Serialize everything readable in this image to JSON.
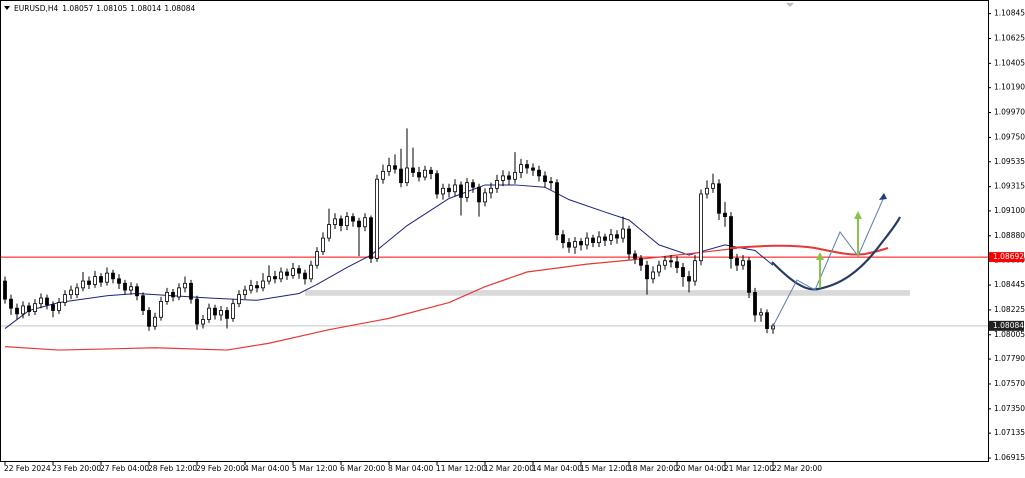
{
  "chart_data": {
    "type": "candlestick",
    "title": "EURUSD,H4",
    "categories": [
      "22 Feb 2024",
      null,
      null,
      null,
      null,
      null,
      null,
      null,
      "23 Feb 20:00",
      null,
      null,
      null,
      null,
      null,
      null,
      null,
      "27 Feb 04:00",
      null,
      null,
      null,
      null,
      null,
      null,
      null,
      "28 Feb 12:00",
      null,
      null,
      null,
      null,
      null,
      null,
      null,
      "29 Feb 20:00",
      null,
      null,
      null,
      null,
      null,
      null,
      null,
      "4 Mar 04:00",
      null,
      null,
      null,
      null,
      null,
      null,
      null,
      "5 Mar 12:00",
      null,
      null,
      null,
      null,
      null,
      null,
      null,
      "6 Mar 20:00",
      null,
      null,
      null,
      null,
      null,
      null,
      null,
      "8 Mar 04:00",
      null,
      null,
      null,
      null,
      null,
      null,
      null,
      "11 Mar 12:00",
      null,
      null,
      null,
      null,
      null,
      null,
      null,
      "12 Mar 20:00",
      null,
      null,
      null,
      null,
      null,
      null,
      null,
      "14 Mar 04:00",
      null,
      null,
      null,
      null,
      null,
      null,
      null,
      "15 Mar 12:00",
      null,
      null,
      null,
      null,
      null,
      null,
      null,
      "18 Mar 20:00",
      null,
      null,
      null,
      null,
      null,
      null,
      null,
      "20 Mar 04:00",
      null,
      null,
      null,
      null,
      null,
      null,
      null,
      "21 Mar 12:00",
      null,
      null,
      null,
      null,
      null,
      null,
      null,
      "22 Mar 20:00"
    ],
    "open": [
      1.0848,
      1.0832,
      1.0824,
      1.0819,
      1.0826,
      1.0821,
      1.0828,
      1.0833,
      1.0827,
      1.0822,
      1.0829,
      1.0836,
      1.0836,
      1.0842,
      1.0848,
      1.0845,
      1.0852,
      1.0847,
      1.0855,
      1.085,
      1.0846,
      1.084,
      1.0843,
      1.0835,
      1.0822,
      1.0808,
      1.0816,
      1.083,
      1.0838,
      1.0834,
      1.0842,
      1.0846,
      1.0832,
      1.081,
      1.0814,
      1.0824,
      1.0818,
      1.0822,
      1.0815,
      1.0828,
      1.0836,
      1.084,
      1.0844,
      1.0842,
      1.0848,
      1.0852,
      1.085,
      1.0856,
      1.0853,
      1.0859,
      1.0855,
      1.085,
      1.0862,
      1.0874,
      1.0886,
      1.0898,
      1.0903,
      1.0897,
      1.0905,
      1.0901,
      1.0896,
      1.0904,
      1.0868,
      1.0938,
      1.0945,
      1.095,
      1.0947,
      1.0935,
      1.0948,
      1.0944,
      1.094,
      1.0946,
      1.0943,
      1.0925,
      1.093,
      1.0927,
      1.0933,
      1.0922,
      1.0935,
      1.0931,
      1.0918,
      1.0926,
      1.093,
      1.0937,
      1.0941,
      1.0938,
      1.0944,
      1.0951,
      1.0948,
      1.0946,
      1.0941,
      1.0936,
      1.0935,
      1.0889,
      1.0882,
      1.0878,
      1.0883,
      1.088,
      1.0886,
      1.0882,
      1.0887,
      1.0884,
      1.0889,
      1.0886,
      1.0894,
      1.0872,
      1.0868,
      1.0862,
      1.085,
      1.0856,
      1.0862,
      1.0866,
      1.0865,
      1.086,
      1.0852,
      1.0848,
      1.0866,
      1.0925,
      1.093,
      1.0934,
      1.0908,
      1.0905,
      1.0868,
      1.0862,
      1.0866,
      1.0838,
      1.0818,
      1.082,
      1.08057
    ],
    "high": [
      1.0852,
      1.0836,
      1.0828,
      1.083,
      1.0829,
      1.0832,
      1.0837,
      1.0836,
      1.083,
      1.0833,
      1.084,
      1.0844,
      1.0846,
      1.0856,
      1.0852,
      1.0857,
      1.0855,
      1.086,
      1.0858,
      1.0854,
      1.0849,
      1.0847,
      1.0846,
      1.0838,
      1.0825,
      1.082,
      1.0834,
      1.0842,
      1.0841,
      1.0846,
      1.0852,
      1.0849,
      1.0835,
      1.0818,
      1.0828,
      1.0827,
      1.0826,
      1.0825,
      1.0832,
      1.084,
      1.0844,
      1.0849,
      1.0848,
      1.0855,
      1.0862,
      1.0857,
      1.086,
      1.0859,
      1.0864,
      1.0862,
      1.0858,
      1.0866,
      1.0878,
      1.0891,
      1.0912,
      1.0908,
      1.0906,
      1.0909,
      1.0908,
      1.0904,
      1.0908,
      1.0906,
      1.0942,
      1.0951,
      1.0957,
      1.096,
      1.0965,
      1.0983,
      1.0966,
      1.0949,
      1.095,
      1.0949,
      1.0946,
      1.0934,
      1.0934,
      1.0938,
      1.0936,
      1.0939,
      1.0938,
      1.0934,
      1.093,
      1.0935,
      1.0942,
      1.0946,
      1.0945,
      1.0962,
      1.0956,
      1.0955,
      1.0952,
      1.095,
      1.0945,
      1.094,
      1.0938,
      1.0893,
      1.0886,
      1.0887,
      1.0886,
      1.0891,
      1.0889,
      1.0892,
      1.089,
      1.0894,
      1.0893,
      1.0905,
      1.0897,
      1.0875,
      1.0871,
      1.0866,
      1.0861,
      1.0866,
      1.087,
      1.0871,
      1.087,
      1.0864,
      1.0857,
      1.0871,
      1.0929,
      1.0937,
      1.0943,
      1.0938,
      1.0918,
      1.0909,
      1.0872,
      1.0871,
      1.0869,
      1.0842,
      1.0824,
      1.0823,
      1.08105
    ],
    "low": [
      1.0828,
      1.0818,
      1.0814,
      1.0815,
      1.0817,
      1.0818,
      1.0824,
      1.0823,
      1.0816,
      1.0819,
      1.0826,
      1.0832,
      1.0833,
      1.0839,
      1.0841,
      1.0842,
      1.0843,
      1.0844,
      1.0846,
      1.0841,
      1.0836,
      1.0836,
      1.0831,
      1.0818,
      1.0804,
      1.0805,
      1.0813,
      1.0827,
      1.083,
      1.0831,
      1.0838,
      1.0828,
      1.0805,
      1.0806,
      1.0811,
      1.0814,
      1.0813,
      1.0806,
      1.0812,
      1.0825,
      1.0832,
      1.0837,
      1.0838,
      1.0839,
      1.0845,
      1.0846,
      1.0847,
      1.0849,
      1.085,
      1.085,
      1.0845,
      1.0847,
      1.0859,
      1.0871,
      1.0883,
      1.0894,
      1.0892,
      1.0893,
      1.0896,
      1.087,
      1.0892,
      1.0864,
      1.0865,
      1.0934,
      1.0941,
      1.0943,
      1.0931,
      1.0932,
      1.094,
      1.0936,
      1.0937,
      1.0938,
      1.0921,
      1.092,
      1.0922,
      1.0923,
      1.0906,
      1.0918,
      1.0926,
      1.0905,
      1.0914,
      1.0921,
      1.0926,
      1.0932,
      1.0933,
      1.0934,
      1.0939,
      1.0943,
      1.0941,
      1.0936,
      1.0931,
      1.0929,
      1.0884,
      1.0877,
      1.0873,
      1.0872,
      1.0875,
      1.0876,
      1.0878,
      1.0878,
      1.0879,
      1.088,
      1.0881,
      1.0882,
      1.0867,
      1.0863,
      1.0857,
      1.0836,
      1.0846,
      1.0852,
      1.0858,
      1.086,
      1.0855,
      1.0843,
      1.0838,
      1.0844,
      1.0862,
      1.0921,
      1.0926,
      1.0902,
      1.0896,
      1.0859,
      1.0857,
      1.0858,
      1.0833,
      1.0812,
      1.0812,
      1.0802,
      1.08014
    ],
    "close": [
      1.0832,
      1.0824,
      1.0819,
      1.0826,
      1.0821,
      1.0828,
      1.0833,
      1.0827,
      1.0822,
      1.0829,
      1.0836,
      1.084,
      1.0842,
      1.0848,
      1.0845,
      1.0852,
      1.0847,
      1.0855,
      1.085,
      1.0846,
      1.084,
      1.0843,
      1.0835,
      1.0822,
      1.0808,
      1.0816,
      1.083,
      1.0838,
      1.0834,
      1.0842,
      1.0846,
      1.0832,
      1.081,
      1.0814,
      1.0824,
      1.0818,
      1.0822,
      1.0815,
      1.0828,
      1.0836,
      1.084,
      1.0844,
      1.0842,
      1.0848,
      1.0852,
      1.085,
      1.0856,
      1.0853,
      1.0859,
      1.0855,
      1.085,
      1.0862,
      1.0874,
      1.0886,
      1.0898,
      1.0903,
      1.0897,
      1.0905,
      1.0901,
      1.0896,
      1.0904,
      1.0868,
      1.0938,
      1.0945,
      1.095,
      1.0947,
      1.0935,
      1.0948,
      1.0944,
      1.094,
      1.0946,
      1.0943,
      1.0925,
      1.093,
      1.0927,
      1.0933,
      1.0922,
      1.0935,
      1.0931,
      1.0918,
      1.0926,
      1.093,
      1.0937,
      1.0941,
      1.0938,
      1.0944,
      1.0951,
      1.0948,
      1.0946,
      1.0941,
      1.0936,
      1.0935,
      1.0889,
      1.0882,
      1.0878,
      1.0883,
      1.088,
      1.0886,
      1.0882,
      1.0887,
      1.0884,
      1.0889,
      1.0886,
      1.0894,
      1.0872,
      1.0868,
      1.0862,
      1.085,
      1.0856,
      1.0862,
      1.0866,
      1.0865,
      1.086,
      1.0852,
      1.0848,
      1.0866,
      1.0925,
      1.093,
      1.0934,
      1.0908,
      1.0905,
      1.0868,
      1.0862,
      1.0866,
      1.0838,
      1.0818,
      1.082,
      1.0806,
      1.08084
    ],
    "up_color": "#ffffff",
    "down_color": "#000000",
    "moving_averages": [
      {
        "color": "#1a237e",
        "x": [
          0,
          4,
          9,
          17,
          22,
          34,
          42,
          49,
          52,
          57,
          61,
          67,
          74,
          80,
          85,
          90,
          94,
          100,
          104,
          109,
          114,
          120,
          125,
          128
        ],
        "values": [
          1.0806,
          1.0822,
          1.0829,
          1.0835,
          1.0837,
          1.0833,
          1.0831,
          1.0837,
          1.0845,
          1.086,
          1.0871,
          1.0897,
          1.0921,
          1.0933,
          1.0933,
          1.0931,
          1.092,
          1.0909,
          1.0902,
          1.088,
          1.0871,
          1.088,
          1.0875,
          1.0862
        ]
      },
      {
        "color": "#e53935",
        "x": [
          0,
          9,
          25,
          37,
          44,
          54,
          64,
          74,
          80,
          87,
          97,
          107,
          117,
          122
        ],
        "values": [
          1.079,
          1.0787,
          1.0789,
          1.0787,
          1.0793,
          1.0805,
          1.0815,
          1.0829,
          1.0843,
          1.0856,
          1.0863,
          1.0868,
          1.0874,
          1.0877
        ]
      }
    ],
    "hlines": [
      {
        "value": 1.08692,
        "color": "#ff0000"
      }
    ],
    "zone": [
      1.0835,
      1.084
    ],
    "ylim": [
      1.0688,
      1.1093
    ],
    "yticks": [
      1.10845,
      1.10625,
      1.10405,
      {
        "value": 1.1019,
        "label": "1.10190"
      },
      {
        "value": 1.0997,
        "label": "1.09970"
      },
      {
        "value": 1.0975,
        "label": "1.09750"
      },
      1.09535,
      1.09315,
      {
        "value": 1.091,
        "label": "1.09100"
      },
      {
        "value": 1.0888,
        "label": "1.08880"
      },
      {
        "value": 1.0866,
        "label": "1.08660"
      },
      1.08445,
      1.08225,
      1.08005,
      {
        "value": 1.0779,
        "label": "1.07790"
      },
      {
        "value": 1.0757,
        "label": "1.07570"
      },
      {
        "value": 1.0735,
        "label": "1.07350"
      },
      1.07135,
      1.06915
    ]
  }
}
